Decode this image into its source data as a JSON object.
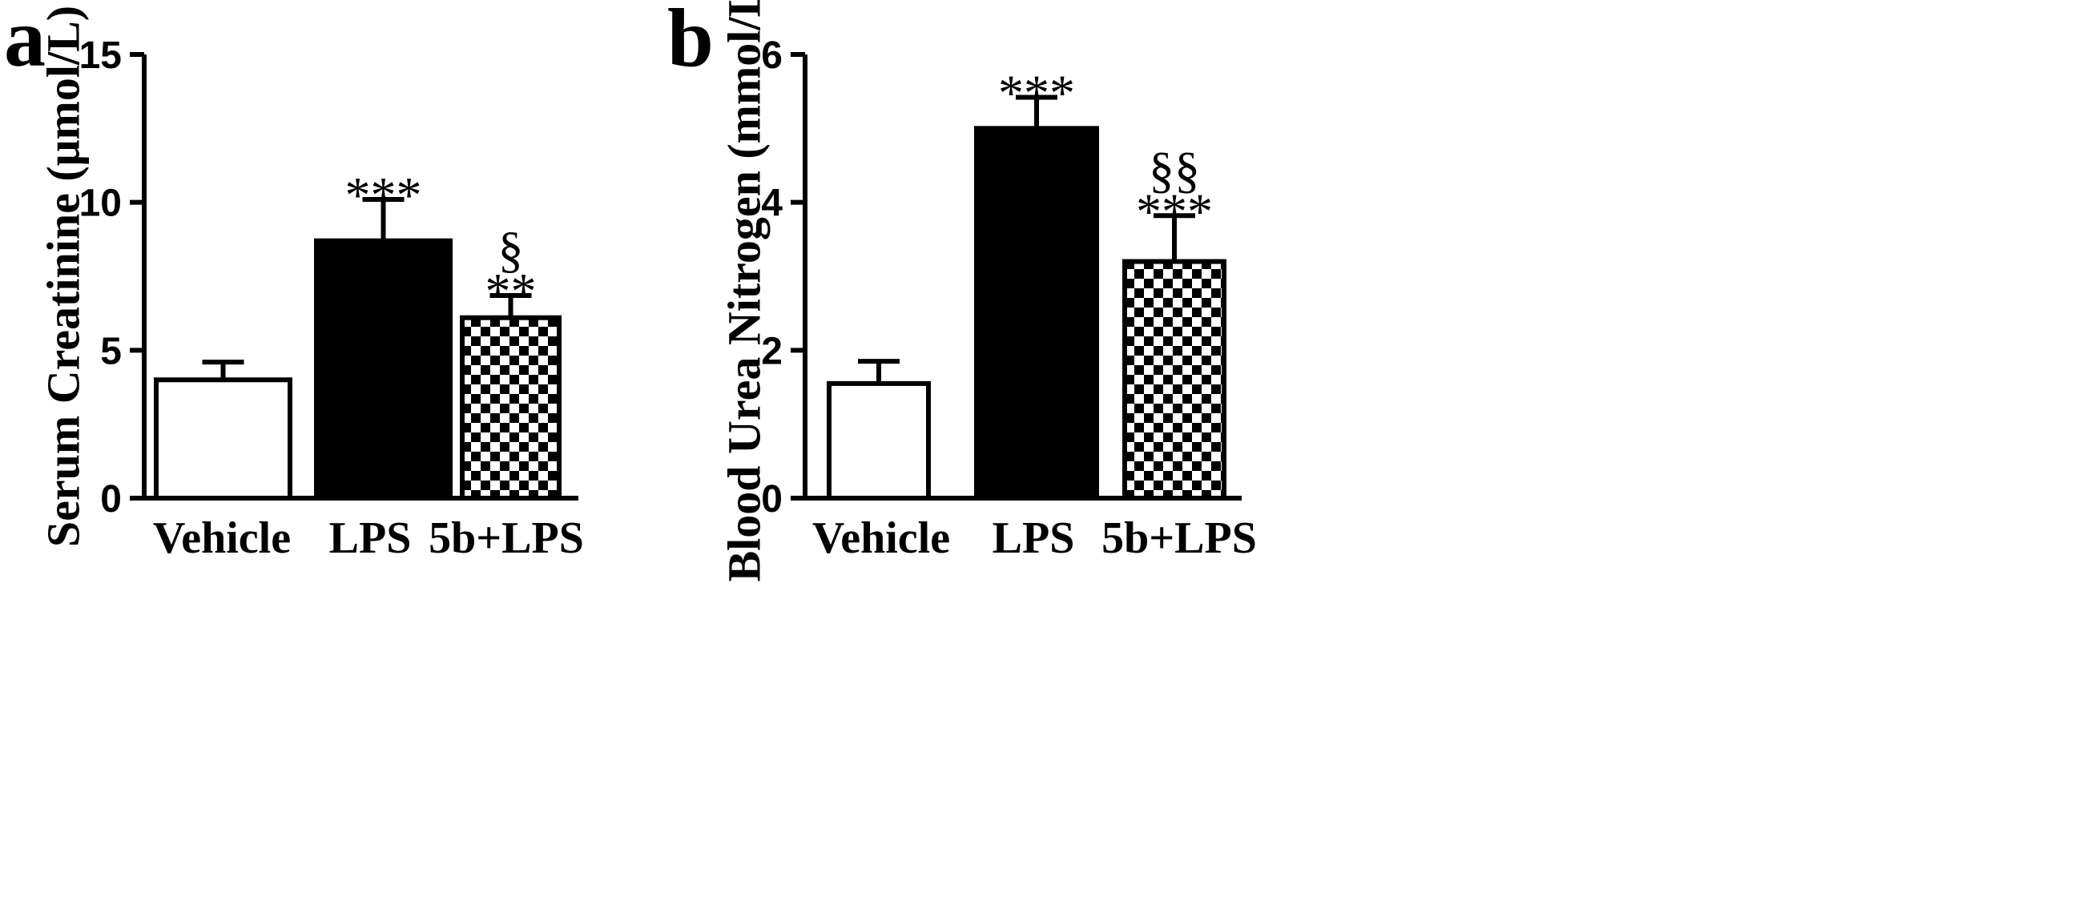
{
  "chart_data": [
    {
      "type": "bar",
      "panel": "a",
      "categories": [
        "Vehicle",
        "LPS",
        "5b+LPS"
      ],
      "values": [
        4.0,
        8.7,
        6.1
      ],
      "errors": [
        0.6,
        1.4,
        0.75
      ],
      "annotations": [
        [],
        [
          "***"
        ],
        [
          "**",
          "§"
        ]
      ],
      "ylabel": "Serum Creatinine (μmol/L)",
      "ylim": [
        0,
        15
      ],
      "yticks": [
        0,
        5,
        10,
        15
      ],
      "ytick_labels": [
        "0",
        "5",
        "10",
        "15"
      ],
      "fills": [
        "white",
        "black",
        "checkerboard"
      ]
    },
    {
      "type": "bar",
      "panel": "b",
      "categories": [
        "Vehicle",
        "LPS",
        "5b+LPS"
      ],
      "values": [
        1.55,
        5.0,
        3.2
      ],
      "errors": [
        0.3,
        0.42,
        0.62
      ],
      "annotations": [
        [],
        [
          "***"
        ],
        [
          "***",
          "§§"
        ]
      ],
      "ylabel": "Blood Urea Nitrogen (mmol/L)",
      "ylim": [
        0,
        6
      ],
      "yticks": [
        0,
        2,
        4,
        6
      ],
      "ytick_labels": [
        "0",
        "2",
        "4",
        "6"
      ],
      "fills": [
        "white",
        "black",
        "checkerboard"
      ]
    }
  ]
}
